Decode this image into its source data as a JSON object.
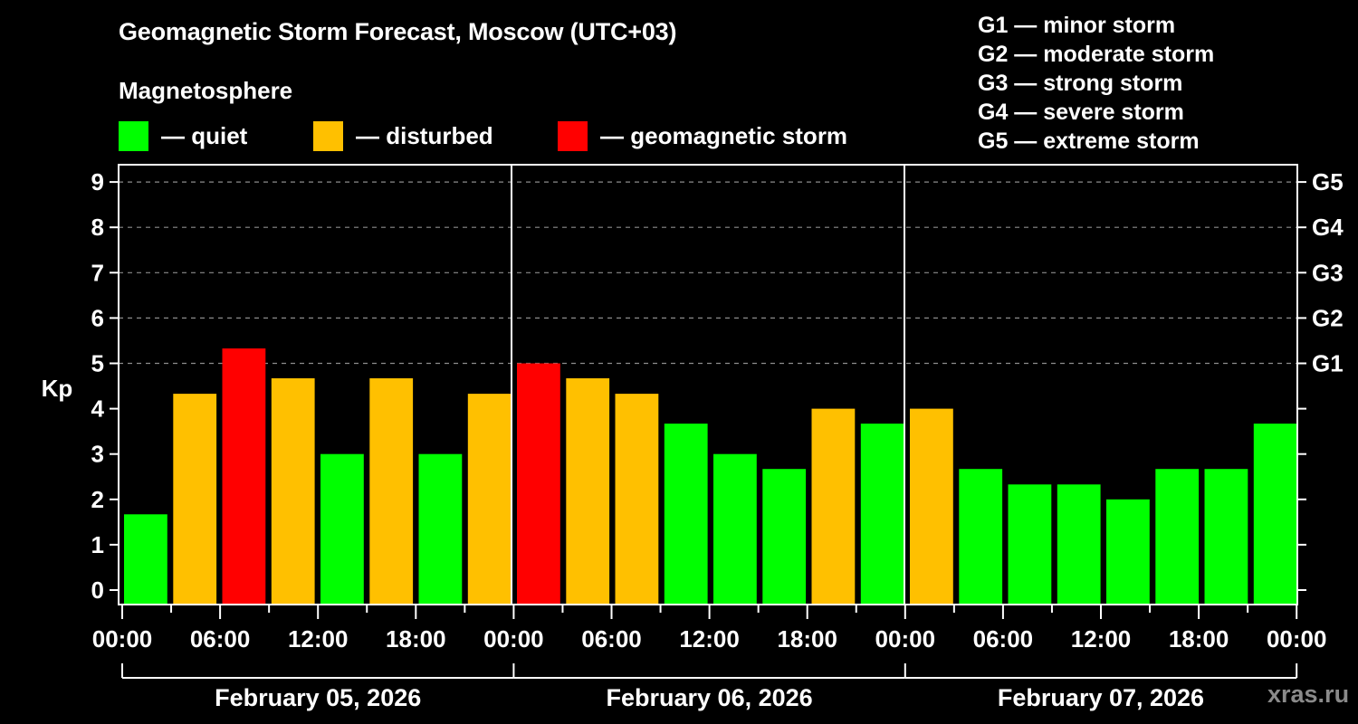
{
  "header": {
    "title": "Geomagnetic Storm Forecast, Moscow (UTC+03)",
    "subtitle": "Magnetosphere"
  },
  "legend": [
    {
      "label": "— quiet",
      "color": "#00ff00"
    },
    {
      "label": "— disturbed",
      "color": "#ffc000"
    },
    {
      "label": "— geomagnetic storm",
      "color": "#ff0000"
    }
  ],
  "storm_scale": [
    "G1 — minor storm",
    "G2 — moderate storm",
    "G3 — strong storm",
    "G4 — severe storm",
    "G5 — extreme storm"
  ],
  "watermark": "xras.ru",
  "chart_data": {
    "type": "bar",
    "title": "Geomagnetic Storm Forecast, Moscow (UTC+03)",
    "xlabel": "",
    "ylabel": "Kp",
    "ylim": [
      -0.33,
      9.6
    ],
    "yticks": [
      0,
      1,
      2,
      3,
      4,
      5,
      6,
      7,
      8,
      9
    ],
    "right_ticks": [
      {
        "kp": 5,
        "label": "G1"
      },
      {
        "kp": 6,
        "label": "G2"
      },
      {
        "kp": 7,
        "label": "G3"
      },
      {
        "kp": 8,
        "label": "G4"
      },
      {
        "kp": 9,
        "label": "G5"
      }
    ],
    "grid": {
      "dashed_horizontal_at": [
        5,
        6,
        7,
        8,
        9
      ]
    },
    "x_tick_labels": [
      "00:00",
      "06:00",
      "12:00",
      "18:00",
      "00:00",
      "06:00",
      "12:00",
      "18:00",
      "00:00",
      "06:00",
      "12:00",
      "18:00",
      "00:00"
    ],
    "days": [
      "February 05, 2026",
      "February 06, 2026",
      "February 07, 2026"
    ],
    "categories": [
      "Feb 05 00-03",
      "Feb 05 03-06",
      "Feb 05 06-09",
      "Feb 05 09-12",
      "Feb 05 12-15",
      "Feb 05 15-18",
      "Feb 05 18-21",
      "Feb 05 21-24",
      "Feb 06 00-03",
      "Feb 06 03-06",
      "Feb 06 06-09",
      "Feb 06 09-12",
      "Feb 06 12-15",
      "Feb 06 15-18",
      "Feb 06 18-21",
      "Feb 06 21-24",
      "Feb 07 00-03",
      "Feb 07 03-06",
      "Feb 07 06-09",
      "Feb 07 09-12",
      "Feb 07 12-15",
      "Feb 07 15-18",
      "Feb 07 18-21",
      "Feb 07 21-24"
    ],
    "values": [
      1.67,
      4.33,
      5.33,
      4.67,
      3.0,
      4.67,
      3.0,
      4.33,
      5.0,
      4.67,
      4.33,
      3.67,
      3.0,
      2.67,
      4.0,
      3.67,
      4.0,
      2.67,
      2.33,
      2.33,
      2.0,
      2.67,
      2.67,
      3.67
    ],
    "status": [
      "quiet",
      "disturbed",
      "storm",
      "disturbed",
      "quiet",
      "disturbed",
      "quiet",
      "disturbed",
      "storm",
      "disturbed",
      "disturbed",
      "quiet",
      "quiet",
      "quiet",
      "disturbed",
      "quiet",
      "disturbed",
      "quiet",
      "quiet",
      "quiet",
      "quiet",
      "quiet",
      "quiet",
      "quiet"
    ],
    "colors": {
      "quiet": "#00ff00",
      "disturbed": "#ffc000",
      "storm": "#ff0000"
    }
  }
}
